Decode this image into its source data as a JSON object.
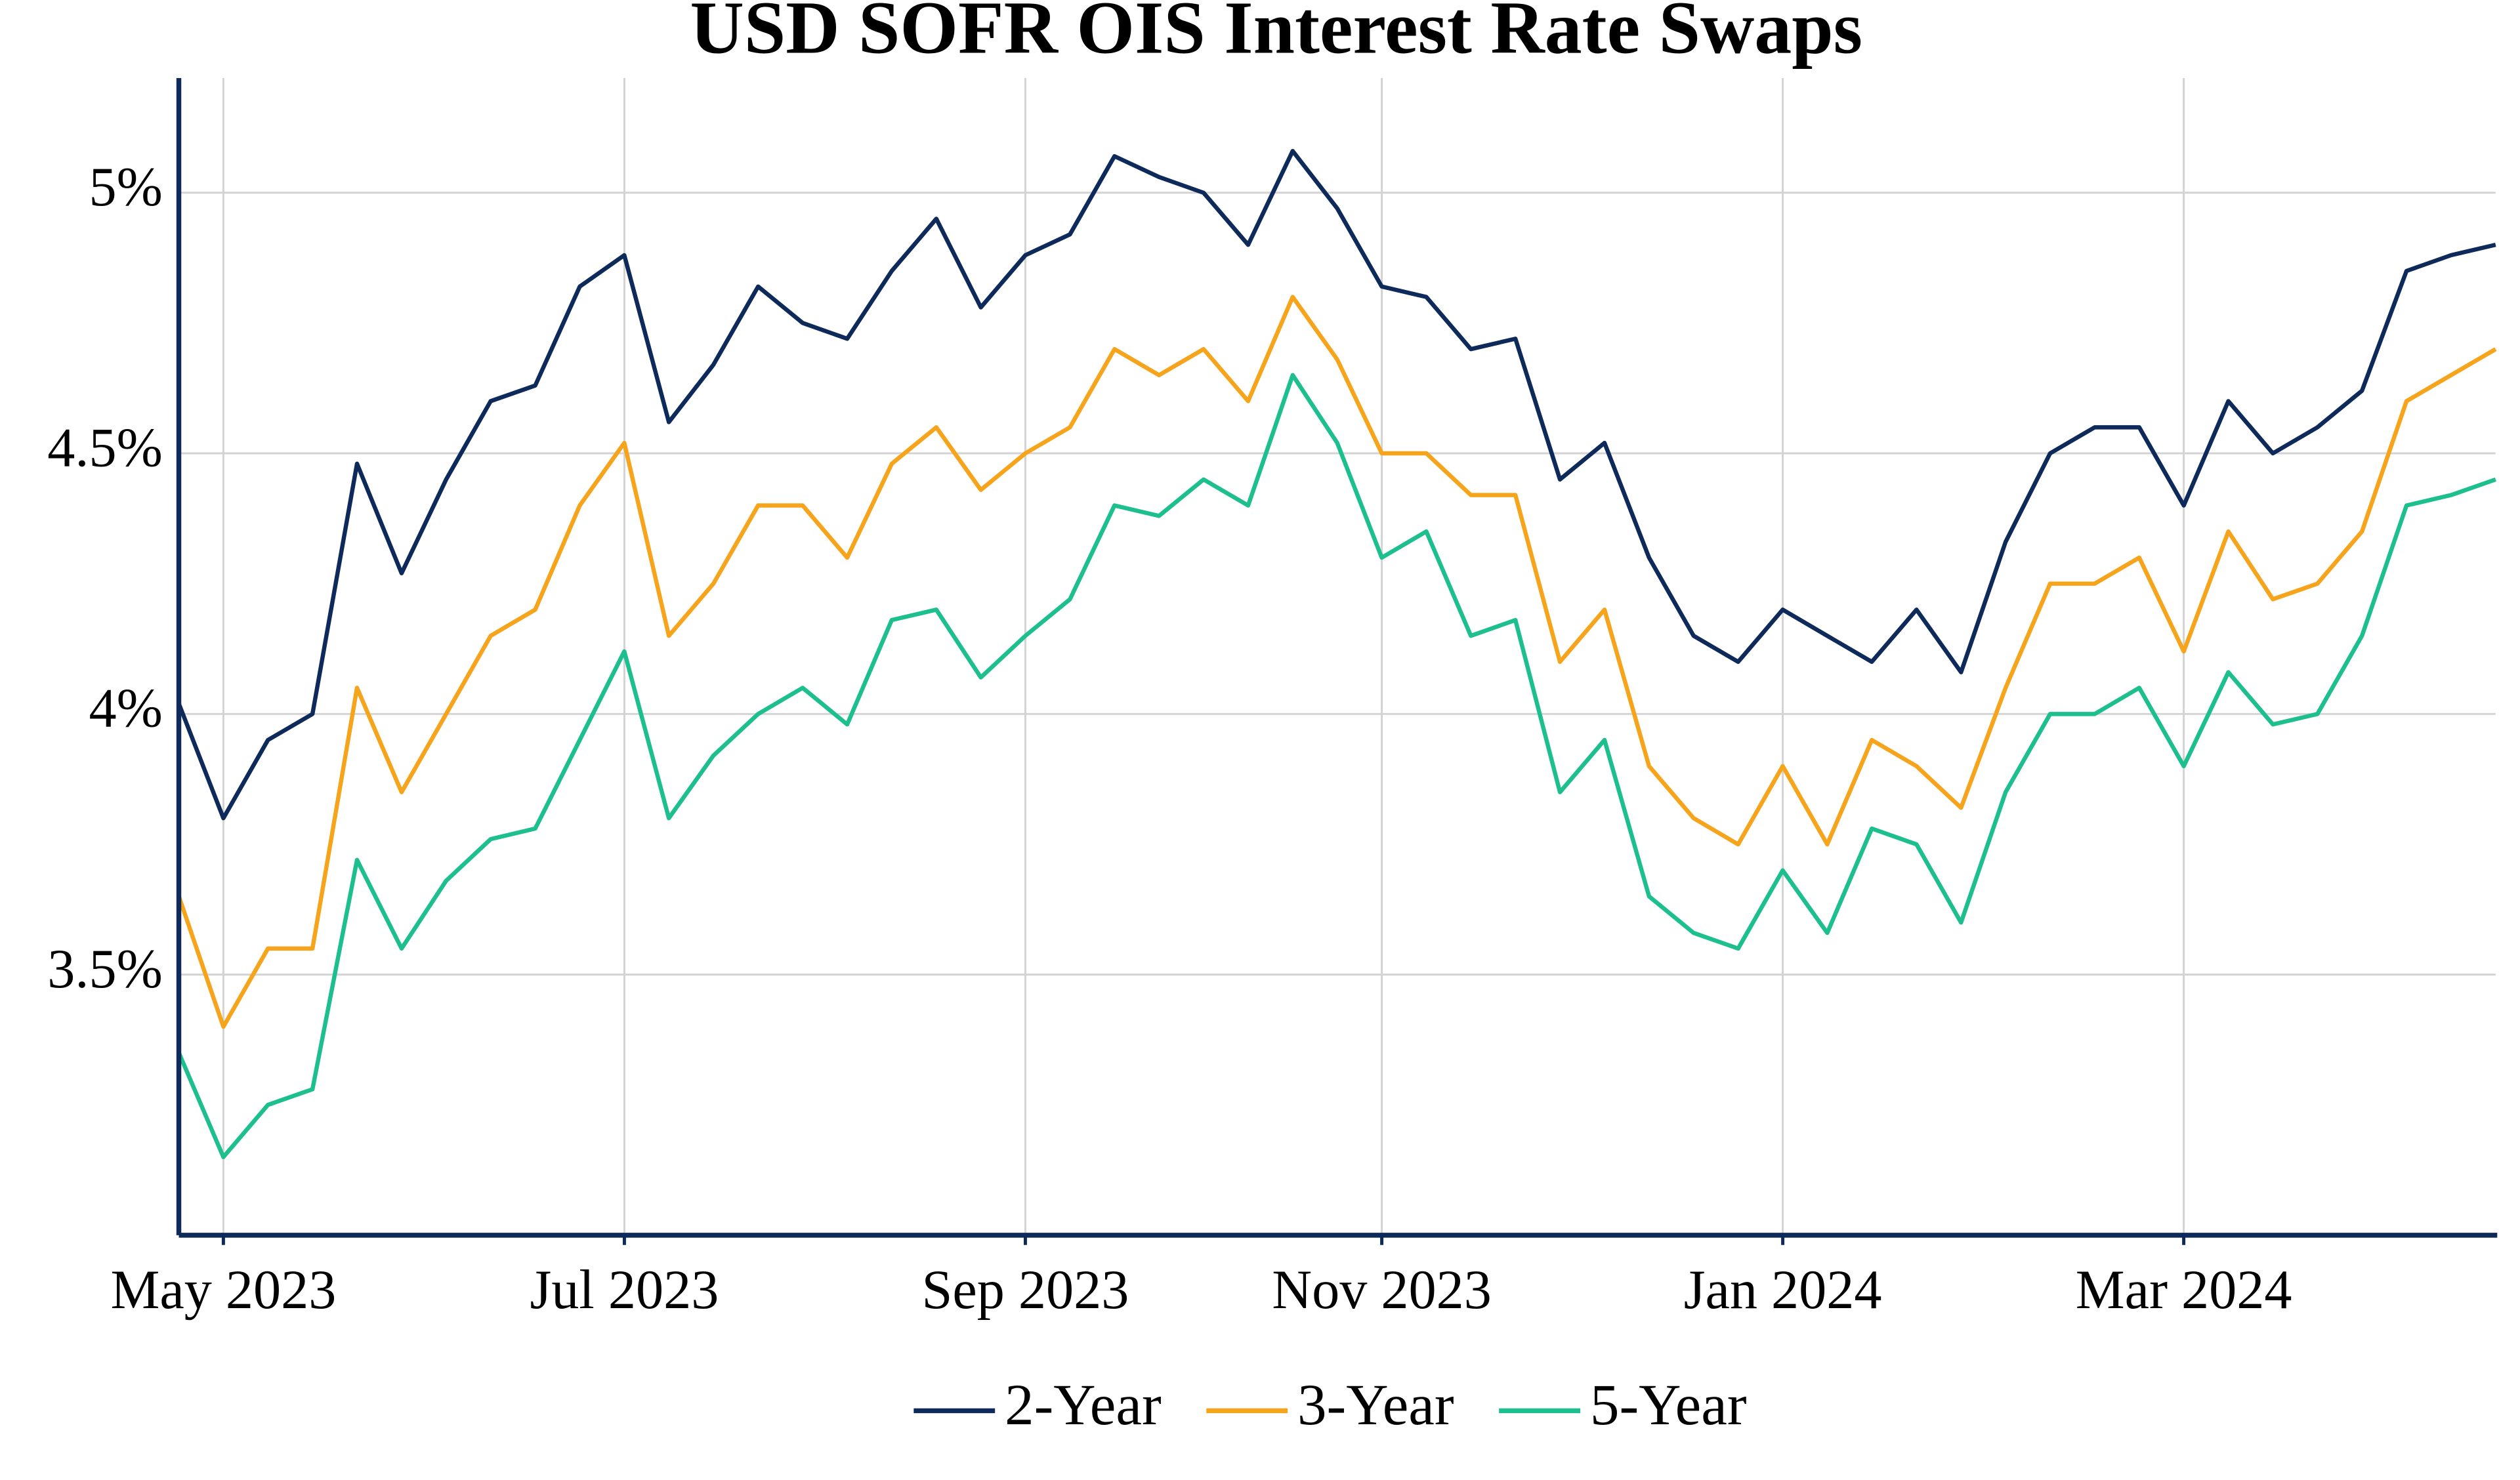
{
  "chart_data": {
    "type": "line",
    "title": "USD SOFR OIS Interest Rate Swaps",
    "categories": [
      null,
      "May 2023",
      null,
      null,
      null,
      null,
      null,
      null,
      null,
      null,
      "Jul 2023",
      null,
      null,
      null,
      null,
      null,
      null,
      null,
      null,
      "Sep 2023",
      null,
      null,
      null,
      null,
      null,
      null,
      null,
      "Nov 2023",
      null,
      null,
      null,
      null,
      null,
      null,
      null,
      null,
      "Jan 2024",
      null,
      null,
      null,
      null,
      null,
      null,
      null,
      null,
      "Mar 2024",
      null,
      null,
      null,
      null,
      null,
      null,
      null
    ],
    "series": [
      {
        "name": "2-Year",
        "color": "#0d2a5b",
        "values": [
          4.02,
          3.8,
          3.95,
          4.0,
          4.48,
          4.27,
          4.45,
          4.6,
          4.63,
          4.82,
          4.88,
          4.56,
          4.67,
          4.82,
          4.75,
          4.72,
          4.85,
          4.95,
          4.78,
          4.88,
          4.92,
          5.07,
          5.03,
          5.0,
          4.9,
          5.08,
          4.97,
          4.82,
          4.8,
          4.7,
          4.72,
          4.45,
          4.52,
          4.3,
          4.15,
          4.1,
          4.2,
          4.15,
          4.1,
          4.2,
          4.08,
          4.33,
          4.5,
          4.55,
          4.55,
          4.4,
          4.6,
          4.5,
          4.55,
          4.62,
          4.85,
          4.88,
          4.9
        ]
      },
      {
        "name": "3-Year",
        "color": "#f7a41d",
        "values": [
          3.65,
          3.4,
          3.55,
          3.55,
          4.05,
          3.85,
          4.0,
          4.15,
          4.2,
          4.4,
          4.52,
          4.15,
          4.25,
          4.4,
          4.4,
          4.3,
          4.48,
          4.55,
          4.43,
          4.5,
          4.55,
          4.7,
          4.65,
          4.7,
          4.6,
          4.8,
          4.68,
          4.5,
          4.5,
          4.42,
          4.42,
          4.1,
          4.2,
          3.9,
          3.8,
          3.75,
          3.9,
          3.75,
          3.95,
          3.9,
          3.82,
          4.05,
          4.25,
          4.25,
          4.3,
          4.12,
          4.35,
          4.22,
          4.25,
          4.35,
          4.6,
          4.65,
          4.7
        ]
      },
      {
        "name": "5-Year",
        "color": "#1dbf8e",
        "values": [
          3.35,
          3.15,
          3.25,
          3.28,
          3.72,
          3.55,
          3.68,
          3.76,
          3.78,
          3.95,
          4.12,
          3.8,
          3.92,
          4.0,
          4.05,
          3.98,
          4.18,
          4.2,
          4.07,
          4.15,
          4.22,
          4.4,
          4.38,
          4.45,
          4.4,
          4.65,
          4.52,
          4.3,
          4.35,
          4.15,
          4.18,
          3.85,
          3.95,
          3.65,
          3.58,
          3.55,
          3.7,
          3.58,
          3.78,
          3.75,
          3.6,
          3.85,
          4.0,
          4.0,
          4.05,
          3.9,
          4.08,
          3.98,
          4.0,
          4.15,
          4.4,
          4.42,
          4.45
        ]
      }
    ],
    "ylim": [
      3,
      5.22
    ],
    "yticks": [
      {
        "value": 3.5,
        "label": "3.5%"
      },
      {
        "value": 4,
        "label": "4%"
      },
      {
        "value": 4.5,
        "label": "4.5%"
      },
      {
        "value": 5,
        "label": "5%"
      }
    ],
    "grid": true,
    "legend": "bottom"
  }
}
